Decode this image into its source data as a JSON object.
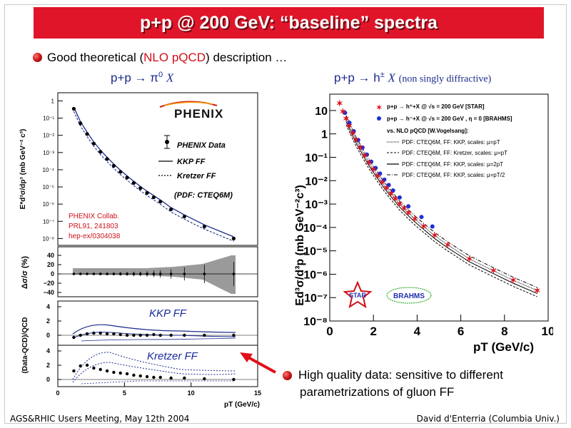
{
  "slide": {
    "title": "p+p @ 200 GeV: “baseline” spectra",
    "bullet1": {
      "pre": "Good theoretical (",
      "highlight": "NLO pQCD",
      "post": ") description …"
    },
    "left_heading": {
      "reaction": "p+p → π",
      "sup": "0",
      "x": "X"
    },
    "right_heading": {
      "reaction": "p+p → h",
      "sup": "±",
      "x": "X",
      "note": "(non singly diffractive)"
    },
    "bullet2": {
      "line1": "High quality data: sensitive to different",
      "line2": "parametrizations of gluon FF"
    },
    "footer_left": "AGS&RHIC Users Meeting, May 12th 2004",
    "footer_right": "David d'Enterria (Columbia Univ.)"
  },
  "left_plot": {
    "logo": "PHENIX",
    "ylabel_top": "E*d³σ/dp³ (mb GeV⁻² c³)",
    "ylabel_mid": "Δσ/σ (%)",
    "ylabel_bot": "(Data-QCD)/QCD",
    "xlabel": "pT (GeV/c)",
    "yticks_top": [
      "1",
      "10⁻¹",
      "10⁻²",
      "10⁻³",
      "10⁻⁴",
      "10⁻⁵",
      "10⁻⁶",
      "10⁻⁷",
      "10⁻⁸"
    ],
    "yticks_mid": [
      "40",
      "20",
      "0",
      "−20",
      "−40"
    ],
    "yticks_bot1": [
      "4",
      "2",
      "0"
    ],
    "yticks_bot2": [
      "4",
      "2",
      "0"
    ],
    "xticks": [
      "0",
      "5",
      "10",
      "15"
    ],
    "legend": {
      "data": "PHENIX Data",
      "kkp": "KKP FF",
      "kretzer": "Kretzer FF",
      "pdf": "(PDF: CTEQ6M)"
    },
    "citation": [
      "PHENIX Collab.",
      "PRL91, 241803",
      "hep-ex/0304038"
    ],
    "label_kkp": "KKP  FF",
    "label_kretzer": "Kretzer FF"
  },
  "right_plot": {
    "ylabel": "Ed³σ/d³p (mb GeV⁻²c³)",
    "xlabel": "pT (GeV/c)",
    "yticks": [
      "10",
      "1",
      "10⁻¹",
      "10⁻²",
      "10⁻³",
      "10⁻⁴",
      "10⁻⁵",
      "10⁻⁶",
      "10⁻⁷",
      "10⁻⁸"
    ],
    "xticks": [
      "0",
      "2",
      "4",
      "6",
      "8",
      "10"
    ],
    "legend": {
      "star": "p+p → h⁺+X @ √s = 200 GeV [STAR]",
      "brahms": "p+p → h⁻+X @ √s = 200 GeV , η = 0 [BRAHMS]",
      "vs": "vs. NLO pQCD [W.Vogelsang]:",
      "l1": "PDF: CTEQ6M, FF: KKP, scales: μ=pT",
      "l2": "PDF: CTEQ6M, FF: Kretzer, scales: μ=pT",
      "l3": "PDF: CTEQ6M, FF: KKP, scales: μ=2pT",
      "l4": "PDF: CTEQ6M, FF: KKP, scales: μ=pT/2"
    },
    "star_logo": "STAR",
    "brahms_logo": "BRAHMS"
  },
  "colors": {
    "title_bg": "#e0152a",
    "heading": "#1a2a8a",
    "accent_red": "#d0101a",
    "kkp_label": "#1a2a9a"
  },
  "chart_data": [
    {
      "type": "scatter",
      "title": "",
      "xlabel": "pT (GeV/c)",
      "ylabel": "E*d³σ/dp³ (mb GeV⁻² c³)",
      "yscale": "log",
      "xlim": [
        0,
        15
      ],
      "ylim": [
        1e-08,
        3
      ],
      "series": [
        {
          "name": "PHENIX Data",
          "x": [
            1.2,
            1.7,
            2.2,
            2.7,
            3.2,
            3.7,
            4.2,
            4.7,
            5.2,
            5.7,
            6.2,
            6.7,
            7.2,
            7.7,
            8.5,
            9.5,
            11,
            13.2
          ],
          "y": [
            0.35,
            0.05,
            0.012,
            0.0033,
            0.0011,
            0.00042,
            0.00017,
            7.5e-05,
            3.5e-05,
            1.7e-05,
            8.5e-06,
            4.5e-06,
            2.5e-06,
            1.4e-06,
            5e-07,
            1.9e-07,
            5e-08,
            1e-08
          ]
        }
      ]
    },
    {
      "type": "scatter",
      "title": "",
      "xlabel": "pT (GeV/c)",
      "ylabel": "Ed³σ/d³p (mb GeV⁻²c³)",
      "yscale": "log",
      "xlim": [
        0,
        10
      ],
      "ylim": [
        1e-08,
        50
      ],
      "series": [
        {
          "name": "p+p → h⁺+X @ √s = 200 GeV [STAR]",
          "x": [
            0.45,
            0.6,
            0.75,
            0.9,
            1.05,
            1.2,
            1.4,
            1.6,
            1.8,
            2.0,
            2.2,
            2.4,
            2.6,
            2.8,
            3.0,
            3.2,
            3.4,
            3.6,
            3.9,
            4.3,
            4.8,
            5.4,
            6.4,
            7.5,
            8.4,
            9.5
          ],
          "y": [
            20,
            9,
            4.5,
            2.2,
            1.1,
            0.55,
            0.26,
            0.12,
            0.058,
            0.03,
            0.016,
            0.0085,
            0.0048,
            0.0028,
            0.0017,
            0.001,
            0.00065,
            0.00042,
            0.00023,
            0.00011,
            4.5e-05,
            1.8e-05,
            4.5e-06,
            1.4e-06,
            5.5e-07,
            2e-07
          ]
        },
        {
          "name": "p+p → h⁻+X @ √s = 200 GeV , η = 0 [BRAHMS]",
          "x": [
            0.7,
            0.9,
            1.1,
            1.3,
            1.5,
            1.7,
            1.9,
            2.1,
            2.3,
            2.5,
            2.7,
            2.9,
            3.2,
            3.6,
            4.2,
            4.7
          ],
          "y": [
            8,
            3,
            1.3,
            0.55,
            0.26,
            0.13,
            0.065,
            0.035,
            0.02,
            0.011,
            0.0065,
            0.0038,
            0.0019,
            0.0008,
            0.00028,
            0.00011
          ]
        }
      ]
    }
  ]
}
